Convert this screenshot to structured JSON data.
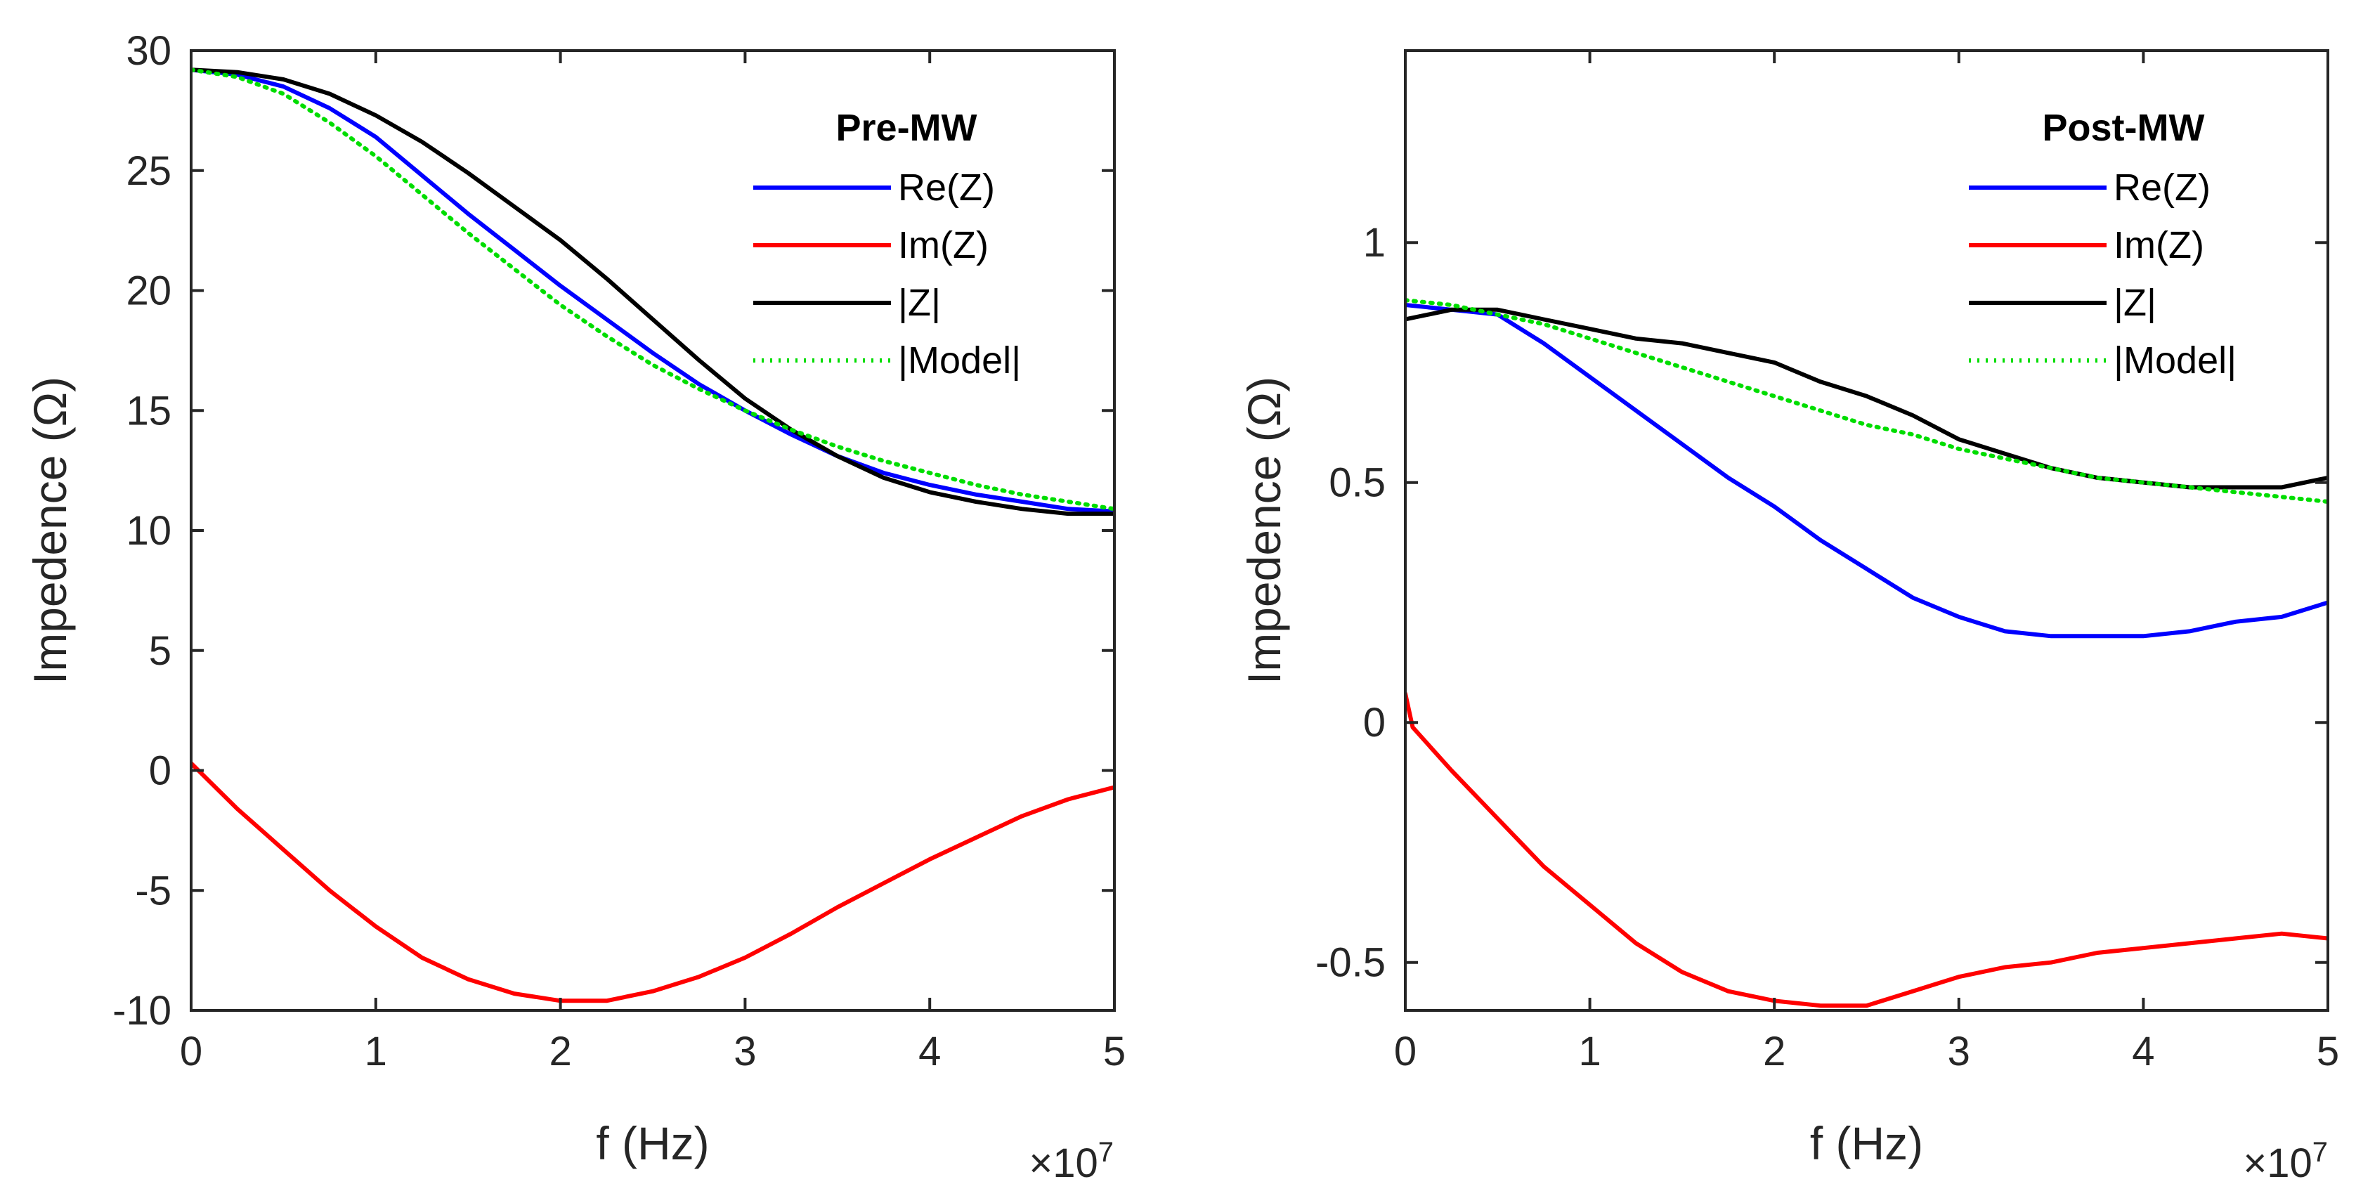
{
  "chart_data": [
    {
      "type": "line",
      "title": "Pre-MW",
      "xlabel": "f (Hz)",
      "ylabel": "Impedence (Ω)",
      "x_multiplier": "×10",
      "x_multiplier_exp": "7",
      "xlim": [
        0,
        5
      ],
      "ylim": [
        -10,
        30
      ],
      "xticks": [
        0,
        1,
        2,
        3,
        4,
        5
      ],
      "xtick_labels": [
        "0",
        "1",
        "2",
        "3",
        "4",
        "5"
      ],
      "yticks": [
        -10,
        -5,
        0,
        5,
        10,
        15,
        20,
        25,
        30
      ],
      "ytick_labels": [
        "-10",
        "-5",
        "0",
        "5",
        "10",
        "15",
        "20",
        "25",
        "30"
      ],
      "legend": {
        "position": "top-right",
        "title": "Pre-MW"
      },
      "series": [
        {
          "name": "Re(Z)",
          "color": "#0000ff",
          "style": "solid",
          "x": [
            0,
            0.25,
            0.5,
            0.75,
            1.0,
            1.25,
            1.5,
            1.75,
            2.0,
            2.25,
            2.5,
            2.75,
            3.0,
            3.25,
            3.5,
            3.75,
            4.0,
            4.25,
            4.5,
            4.75,
            5.0
          ],
          "y": [
            29.2,
            29.0,
            28.5,
            27.6,
            26.4,
            24.8,
            23.2,
            21.7,
            20.2,
            18.8,
            17.4,
            16.1,
            15.0,
            14.0,
            13.1,
            12.4,
            11.9,
            11.5,
            11.2,
            10.9,
            10.8
          ]
        },
        {
          "name": "Im(Z)",
          "color": "#ff0000",
          "style": "solid",
          "x": [
            0,
            0.25,
            0.5,
            0.75,
            1.0,
            1.25,
            1.5,
            1.75,
            2.0,
            2.25,
            2.5,
            2.75,
            3.0,
            3.25,
            3.5,
            3.75,
            4.0,
            4.25,
            4.5,
            4.75,
            5.0
          ],
          "y": [
            0.3,
            -1.6,
            -3.3,
            -5.0,
            -6.5,
            -7.8,
            -8.7,
            -9.3,
            -9.6,
            -9.6,
            -9.2,
            -8.6,
            -7.8,
            -6.8,
            -5.7,
            -4.7,
            -3.7,
            -2.8,
            -1.9,
            -1.2,
            -0.7
          ]
        },
        {
          "name": "|Z|",
          "color": "#000000",
          "style": "solid",
          "x": [
            0,
            0.25,
            0.5,
            0.75,
            1.0,
            1.25,
            1.5,
            1.75,
            2.0,
            2.25,
            2.5,
            2.75,
            3.0,
            3.25,
            3.5,
            3.75,
            4.0,
            4.25,
            4.5,
            4.75,
            5.0
          ],
          "y": [
            29.2,
            29.1,
            28.8,
            28.2,
            27.3,
            26.2,
            24.9,
            23.5,
            22.1,
            20.5,
            18.8,
            17.1,
            15.5,
            14.2,
            13.1,
            12.2,
            11.6,
            11.2,
            10.9,
            10.7,
            10.7
          ]
        },
        {
          "name": "|Model|",
          "color": "#00dd00",
          "style": "dotted",
          "x": [
            0,
            0.25,
            0.5,
            0.75,
            1.0,
            1.25,
            1.5,
            1.75,
            2.0,
            2.25,
            2.5,
            2.75,
            3.0,
            3.25,
            3.5,
            3.75,
            4.0,
            4.25,
            4.5,
            4.75,
            5.0
          ],
          "y": [
            29.2,
            28.9,
            28.2,
            27.0,
            25.6,
            24.0,
            22.4,
            20.9,
            19.4,
            18.1,
            16.9,
            15.9,
            15.0,
            14.2,
            13.5,
            12.9,
            12.4,
            11.9,
            11.5,
            11.2,
            10.9
          ]
        }
      ]
    },
    {
      "type": "line",
      "title": "Post-MW",
      "xlabel": "f (Hz)",
      "ylabel": "Impedence (Ω)",
      "x_multiplier": "×10",
      "x_multiplier_exp": "7",
      "xlim": [
        0,
        5
      ],
      "ylim": [
        -0.6,
        1.4
      ],
      "xticks": [
        0,
        1,
        2,
        3,
        4,
        5
      ],
      "xtick_labels": [
        "0",
        "1",
        "2",
        "3",
        "4",
        "5"
      ],
      "yticks": [
        -0.5,
        0,
        0.5,
        1
      ],
      "ytick_labels": [
        "-0.5",
        "0",
        "0.5",
        "1"
      ],
      "legend": {
        "position": "top-right",
        "title": "Post-MW"
      },
      "series": [
        {
          "name": "Re(Z)",
          "color": "#0000ff",
          "style": "solid",
          "x": [
            0,
            0.25,
            0.5,
            0.75,
            1.0,
            1.25,
            1.5,
            1.75,
            2.0,
            2.25,
            2.5,
            2.75,
            3.0,
            3.25,
            3.5,
            3.75,
            4.0,
            4.25,
            4.5,
            4.75,
            5.0
          ],
          "y": [
            0.87,
            0.86,
            0.85,
            0.79,
            0.72,
            0.65,
            0.58,
            0.51,
            0.45,
            0.38,
            0.32,
            0.26,
            0.22,
            0.19,
            0.18,
            0.18,
            0.18,
            0.19,
            0.21,
            0.22,
            0.25
          ]
        },
        {
          "name": "Im(Z)",
          "color": "#ff0000",
          "style": "solid",
          "x": [
            0,
            0.04,
            0.25,
            0.5,
            0.75,
            1.0,
            1.25,
            1.5,
            1.75,
            2.0,
            2.25,
            2.5,
            2.75,
            3.0,
            3.25,
            3.5,
            3.75,
            4.0,
            4.25,
            4.5,
            4.75,
            5.0
          ],
          "y": [
            0.06,
            -0.01,
            -0.1,
            -0.2,
            -0.3,
            -0.38,
            -0.46,
            -0.52,
            -0.56,
            -0.58,
            -0.59,
            -0.59,
            -0.56,
            -0.53,
            -0.51,
            -0.5,
            -0.48,
            -0.47,
            -0.46,
            -0.45,
            -0.44,
            -0.45
          ]
        },
        {
          "name": "|Z|",
          "color": "#000000",
          "style": "solid",
          "x": [
            0,
            0.25,
            0.5,
            0.75,
            1.0,
            1.25,
            1.5,
            1.75,
            2.0,
            2.25,
            2.5,
            2.75,
            3.0,
            3.25,
            3.5,
            3.75,
            4.0,
            4.25,
            4.5,
            4.75,
            5.0
          ],
          "y": [
            0.84,
            0.86,
            0.86,
            0.84,
            0.82,
            0.8,
            0.79,
            0.77,
            0.75,
            0.71,
            0.68,
            0.64,
            0.59,
            0.56,
            0.53,
            0.51,
            0.5,
            0.49,
            0.49,
            0.49,
            0.51
          ]
        },
        {
          "name": "|Model|",
          "color": "#00dd00",
          "style": "dotted",
          "x": [
            0,
            0.25,
            0.5,
            0.75,
            1.0,
            1.25,
            1.5,
            1.75,
            2.0,
            2.25,
            2.5,
            2.75,
            3.0,
            3.25,
            3.5,
            3.75,
            4.0,
            4.25,
            4.5,
            4.75,
            5.0
          ],
          "y": [
            0.88,
            0.87,
            0.85,
            0.83,
            0.8,
            0.77,
            0.74,
            0.71,
            0.68,
            0.65,
            0.62,
            0.6,
            0.57,
            0.55,
            0.53,
            0.51,
            0.5,
            0.49,
            0.48,
            0.47,
            0.46
          ]
        }
      ]
    }
  ]
}
